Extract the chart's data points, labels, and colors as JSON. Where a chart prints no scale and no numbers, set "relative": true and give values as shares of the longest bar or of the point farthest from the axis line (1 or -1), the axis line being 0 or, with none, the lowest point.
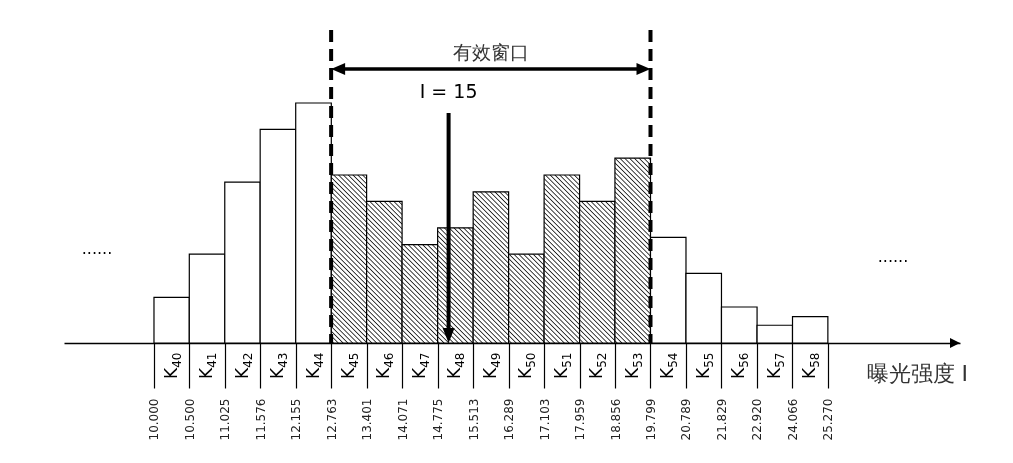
{
  "chart_data": {
    "type": "bar",
    "relative": true,
    "log": "x",
    "x": [
      10.25,
      10.76,
      11.3,
      11.86,
      12.46,
      13.08,
      13.73,
      14.42,
      15.14,
      15.9,
      16.69,
      17.53,
      18.4,
      19.32,
      20.29,
      21.3,
      22.37,
      23.49,
      24.66
    ],
    "values": [
      0.19,
      0.37,
      0.67,
      0.89,
      1,
      0.7,
      0.59,
      0.41,
      0.48,
      0.63,
      0.37,
      0.7,
      0.59,
      0.77,
      0.44,
      0.29,
      0.15,
      0.074,
      0.11
    ],
    "colors": [
      "#ffffff",
      "#ffffff",
      "#ffffff",
      "#ffffff",
      "#ffffff",
      "#000000",
      "#000000",
      "#000000",
      "#000000",
      "#000000",
      "#000000",
      "#000000",
      "#000000",
      "#000000",
      "#ffffff",
      "#ffffff",
      "#ffffff",
      "#ffffff",
      "#ffffff"
    ],
    "xlim": [
      8.84,
      30.3
    ],
    "xticks": [
      {
        "value": 10,
        "label": "10.000"
      },
      {
        "value": 10.5,
        "label": "10.500"
      },
      11.025,
      11.576,
      12.155,
      12.763,
      13.401,
      14.071,
      14.775,
      15.513,
      16.289,
      17.103,
      17.959,
      18.856,
      19.799,
      20.789,
      21.829,
      {
        "value": 22.92,
        "label": "22.920"
      },
      24.066,
      {
        "value": 25.27,
        "label": "25.270"
      }
    ],
    "xlabel": "曝光强度 I",
    "ref_lines": [
      {
        "axis": "x",
        "value": 12.763,
        "line_style": "dashed",
        "color": "#000000"
      },
      {
        "axis": "x",
        "value": 19.799,
        "line_style": "dashed",
        "color": "#000000"
      },
      {
        "axis": "x",
        "value": 15,
        "label": "I = 15",
        "color": "#000000"
      }
    ],
    "annotations": [
      "有效窗口",
      "......",
      "......",
      "K$_{40}$",
      "K$_{41}$",
      "K$_{42}$",
      "K$_{43}$",
      "K$_{44}$",
      "K$_{45}$",
      "K$_{46}$",
      "K$_{47}$",
      "K$_{48}$",
      "K$_{49}$",
      "K$_{50}$",
      "K$_{51}$",
      "K$_{52}$",
      "K$_{53}$",
      "K$_{54}$",
      "K$_{55}$",
      "K$_{56}$",
      "K$_{57}$",
      "K$_{58}$"
    ]
  }
}
